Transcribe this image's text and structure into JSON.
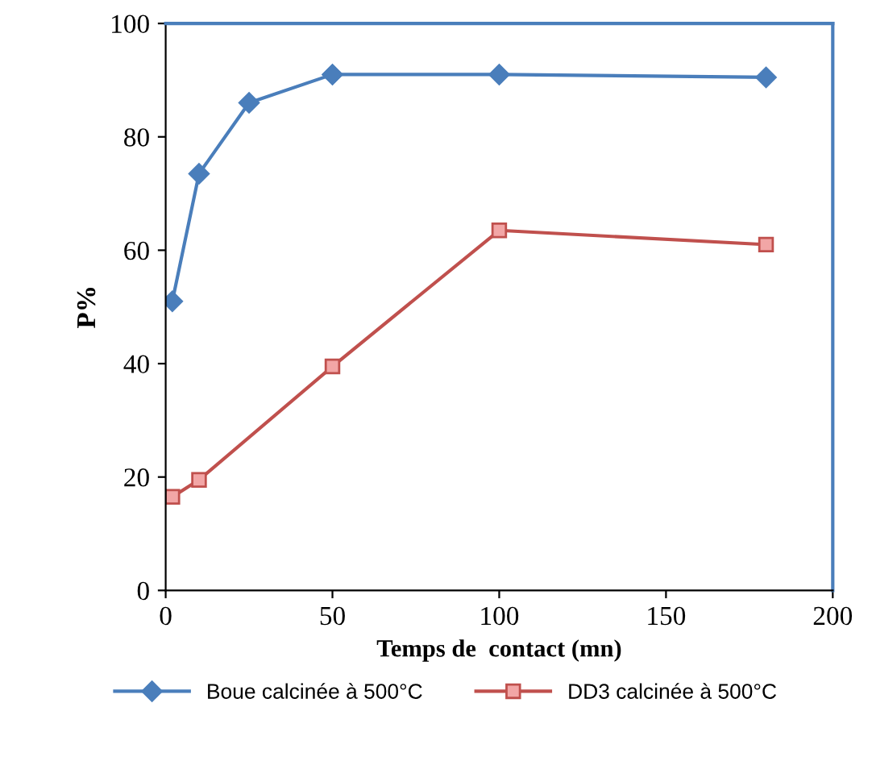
{
  "chart_data": {
    "type": "line",
    "xlabel": "Temps de  contact (mn)",
    "ylabel": "P%",
    "xlim": [
      0,
      200
    ],
    "xticks": [
      0,
      50,
      100,
      150,
      200
    ],
    "ylim": [
      0,
      100
    ],
    "yticks": [
      0,
      20,
      40,
      60,
      80,
      100
    ],
    "grid": false,
    "legend": "bottom",
    "series": [
      {
        "name": "Boue calcinée à 500°C",
        "color": "#4a7ebb",
        "marker": "diamond",
        "x": [
          2,
          10,
          25,
          50,
          100,
          180
        ],
        "values": [
          51,
          73.5,
          86,
          91,
          91,
          90.5
        ]
      },
      {
        "name": "DD3 calcinée à 500°C",
        "color": "#c0504d",
        "marker": "square",
        "x": [
          2,
          10,
          50,
          100,
          180
        ],
        "values": [
          16.5,
          19.5,
          39.5,
          63.5,
          61
        ]
      }
    ]
  }
}
